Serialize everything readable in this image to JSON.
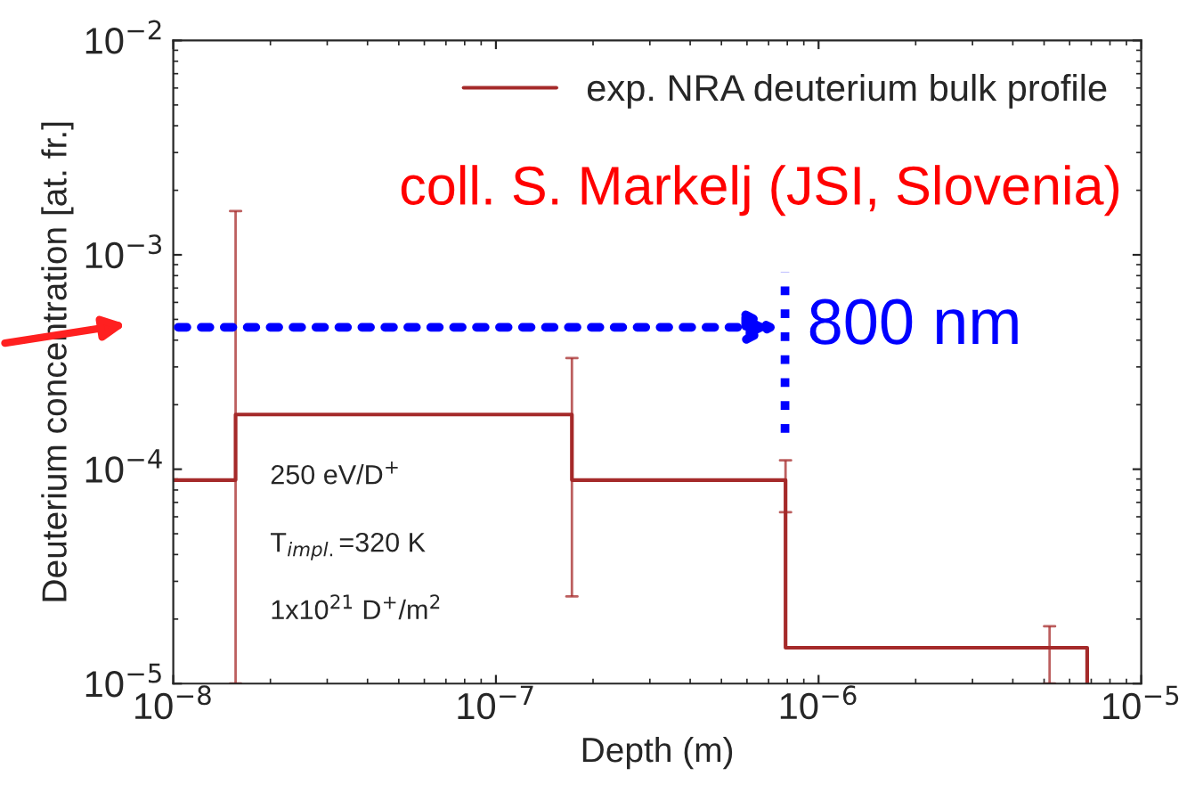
{
  "chart_data": {
    "type": "step",
    "xlabel": "Depth (m)",
    "ylabel": "Deuterium concentration [at. fr.]",
    "log": "xy",
    "grid": false,
    "legend": "top right",
    "xlim": [
      1e-08,
      1e-05
    ],
    "xticks": [
      {
        "value": 1e-08,
        "label": "10$^{−8}$"
      },
      {
        "value": 1e-07,
        "label": "10$^{−7}$"
      },
      {
        "value": 1e-06,
        "label": "10$^{−6}$"
      },
      {
        "value": 1e-05,
        "label": "10$^{−5}$"
      }
    ],
    "ylim": [
      1e-05,
      0.01
    ],
    "yticks": [
      {
        "value": 1e-05,
        "label": "10$^{−5}$"
      },
      {
        "value": 0.0001,
        "label": "10$^{−4}$"
      },
      {
        "value": 0.001,
        "label": "10$^{−3}$"
      },
      {
        "value": 0.01,
        "label": "10$^{−2}$"
      }
    ],
    "series": [
      {
        "name": "exp. NRA deuterium bulk profile",
        "color": "#a52a2a",
        "x": [
          1e-08,
          1.56e-08,
          1.72e-07,
          7.9e-07,
          5.2e-06,
          6.8e-06
        ],
        "values": [
          8.9e-05,
          0.00018,
          8.9e-05,
          1.47e-05,
          1.47e-05,
          1e-05
        ],
        "errors": [
          null,
          [
            1e-05,
            0.0016
          ],
          [
            2.55e-05,
            0.00033
          ],
          [
            6.3e-05,
            0.00011
          ],
          [
            1e-05,
            1.85e-05
          ],
          null
        ]
      }
    ],
    "annotations": [
      "250 eV/D$^{+}$",
      "T$_{impl.}$=320 K",
      "1x10$^{21}$ D$^{+}$/m$^{2}$",
      "coll. S. Markelj (JSI, Slovenia)",
      "800 nm"
    ]
  }
}
